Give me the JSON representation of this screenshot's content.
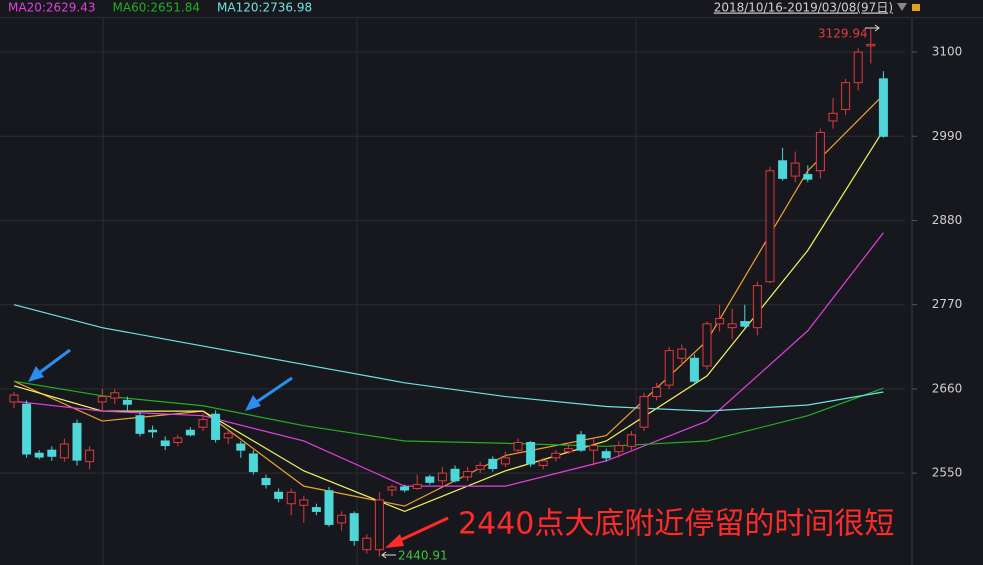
{
  "chart_data": {
    "type": "candlestick",
    "range_label": "2018/10/16-2019/03/08(97日)",
    "ylim": [
      2430,
      3168
    ],
    "yticks": [
      2550,
      2660,
      2770,
      2880,
      2990,
      3100
    ],
    "grid": true,
    "up_color": "#e0393e",
    "down_color": "#4ed6d8",
    "open": [
      2643,
      2640,
      2576,
      2580,
      2570,
      2615,
      2565,
      2643,
      2648,
      2645,
      2625,
      2606,
      2592,
      2590,
      2606,
      2610,
      2627,
      2596,
      2588,
      2575,
      2543,
      2525,
      2510,
      2508,
      2505,
      2527,
      2485,
      2497,
      2450,
      2450,
      2528,
      2532,
      2530,
      2545,
      2540,
      2555,
      2545,
      2555,
      2568,
      2562,
      2580,
      2590,
      2560,
      2570,
      2578,
      2600,
      2580,
      2578,
      2578,
      2585,
      2610,
      2650,
      2665,
      2700,
      2700,
      2690,
      2745,
      2740,
      2748,
      2740,
      2800,
      2958,
      2938,
      2940,
      2945,
      3010,
      3025,
      3060,
      3108,
      3065
    ],
    "high": [
      2656,
      2645,
      2580,
      2585,
      2595,
      2620,
      2585,
      2660,
      2660,
      2650,
      2632,
      2612,
      2598,
      2600,
      2610,
      2628,
      2632,
      2605,
      2592,
      2580,
      2548,
      2530,
      2530,
      2520,
      2510,
      2532,
      2500,
      2500,
      2470,
      2525,
      2535,
      2535,
      2548,
      2548,
      2558,
      2560,
      2558,
      2565,
      2572,
      2578,
      2595,
      2592,
      2570,
      2580,
      2590,
      2605,
      2595,
      2582,
      2592,
      2605,
      2655,
      2668,
      2715,
      2718,
      2705,
      2748,
      2770,
      2765,
      2770,
      2800,
      2950,
      2975,
      2970,
      2952,
      3000,
      3040,
      3065,
      3105,
      3129.94,
      3075
    ],
    "low": [
      2635,
      2570,
      2568,
      2566,
      2565,
      2560,
      2555,
      2630,
      2640,
      2630,
      2598,
      2596,
      2580,
      2585,
      2598,
      2605,
      2590,
      2588,
      2570,
      2548,
      2530,
      2512,
      2495,
      2485,
      2495,
      2480,
      2475,
      2455,
      2445,
      2440.91,
      2520,
      2525,
      2528,
      2535,
      2535,
      2538,
      2540,
      2550,
      2552,
      2558,
      2575,
      2558,
      2555,
      2565,
      2575,
      2578,
      2560,
      2565,
      2570,
      2580,
      2605,
      2645,
      2660,
      2690,
      2665,
      2685,
      2735,
      2725,
      2740,
      2730,
      2798,
      2932,
      2930,
      2930,
      2935,
      3000,
      3018,
      3050,
      3085,
      2988
    ],
    "close": [
      2652,
      2575,
      2571,
      2572,
      2588,
      2567,
      2580,
      2650,
      2655,
      2640,
      2602,
      2604,
      2586,
      2596,
      2600,
      2620,
      2594,
      2602,
      2580,
      2552,
      2535,
      2517,
      2525,
      2515,
      2500,
      2483,
      2495,
      2462,
      2465,
      2515,
      2532,
      2528,
      2535,
      2538,
      2550,
      2540,
      2552,
      2560,
      2556,
      2570,
      2590,
      2562,
      2566,
      2576,
      2582,
      2580,
      2586,
      2570,
      2586,
      2600,
      2650,
      2662,
      2710,
      2712,
      2670,
      2745,
      2752,
      2745,
      2742,
      2795,
      2945,
      2935,
      2955,
      2934,
      2995,
      3020,
      3060,
      3100,
      3110,
      2990
    ],
    "series": [
      {
        "color": "#f0a030",
        "x": [
          0,
          7,
          15,
          23,
          31,
          39,
          47,
          55,
          63,
          69
        ],
        "values": [
          2670,
          2618,
          2631,
          2533,
          2507,
          2573,
          2599,
          2723,
          2945,
          3044
        ]
      },
      {
        "color": "#f2f260",
        "x": [
          0,
          7,
          15,
          23,
          31,
          39,
          47,
          55,
          63,
          69
        ],
        "values": [
          2664,
          2631,
          2631,
          2553,
          2500,
          2553,
          2592,
          2677,
          2841,
          2998
        ]
      },
      {
        "name": "MA20:2629.43",
        "color": "#e040e0",
        "x": [
          0,
          7,
          15,
          23,
          31,
          39,
          47,
          55,
          63,
          69
        ],
        "values": [
          2644,
          2631,
          2625,
          2592,
          2533,
          2533,
          2566,
          2618,
          2736,
          2864
        ]
      },
      {
        "name": "MA60:2651.84",
        "color": "#20b020",
        "x": [
          0,
          7,
          15,
          23,
          31,
          39,
          47,
          55,
          63,
          69
        ],
        "values": [
          2670,
          2651,
          2638,
          2612,
          2592,
          2589,
          2585,
          2592,
          2625,
          2661
        ]
      },
      {
        "name": "MA120:2736.98",
        "color": "#70e0e0",
        "x": [
          0,
          7,
          15,
          23,
          31,
          39,
          47,
          55,
          63,
          69
        ],
        "values": [
          2770,
          2740,
          2716,
          2692,
          2668,
          2650,
          2637,
          2631,
          2639,
          2656
        ]
      }
    ],
    "annotations": {
      "high": "3129.94",
      "low": "2440.91",
      "note": "2440点大底附近停留的时间很短"
    }
  }
}
